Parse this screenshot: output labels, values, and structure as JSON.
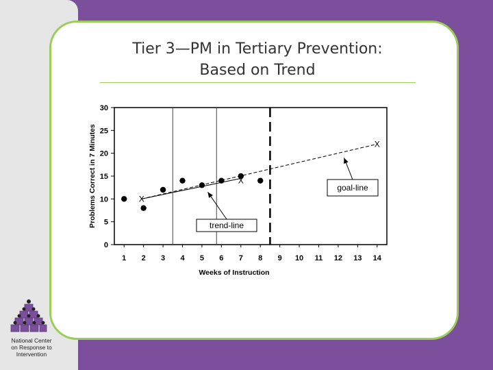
{
  "slide": {
    "title_line1": "Tier 3—PM in Tertiary Prevention:",
    "title_line2": "Based on Trend"
  },
  "logo": {
    "icon": "cube-pyramid-logo",
    "line1": "National Center",
    "line2": "on Response to",
    "line3": "Intervention"
  },
  "chart_data": {
    "type": "scatter",
    "xlabel": "Weeks of Instruction",
    "ylabel": "Problems Correct in 7 Minutes",
    "xlim": [
      0.5,
      14.5
    ],
    "ylim": [
      0,
      30
    ],
    "xticks": [
      1,
      2,
      3,
      4,
      5,
      6,
      7,
      8,
      9,
      10,
      11,
      12,
      13,
      14
    ],
    "yticks": [
      0,
      5,
      10,
      15,
      20,
      25,
      30
    ],
    "points": [
      {
        "x": 1,
        "y": 10
      },
      {
        "x": 2,
        "y": 8
      },
      {
        "x": 3,
        "y": 12
      },
      {
        "x": 4,
        "y": 14
      },
      {
        "x": 5,
        "y": 13
      },
      {
        "x": 6,
        "y": 14
      },
      {
        "x": 7,
        "y": 15
      },
      {
        "x": 8,
        "y": 14
      }
    ],
    "phase_lines": [
      3.5,
      5.75
    ],
    "decision_line": 8.5,
    "x_markers": [
      {
        "x": 1.9,
        "y": 10
      },
      {
        "x": 7,
        "y": 14
      },
      {
        "x": 14,
        "y": 22
      }
    ],
    "trend_line": {
      "from": [
        1.9,
        10
      ],
      "to": [
        7,
        14.5
      ]
    },
    "goal_line": {
      "from": [
        1.9,
        10
      ],
      "to": [
        14,
        22
      ]
    },
    "annotations": [
      {
        "text": "trend-line",
        "target": [
          5.3,
          11.5
        ]
      },
      {
        "text": "goal-line",
        "target": [
          12.3,
          19
        ]
      }
    ],
    "grid": false,
    "legend": "none"
  }
}
